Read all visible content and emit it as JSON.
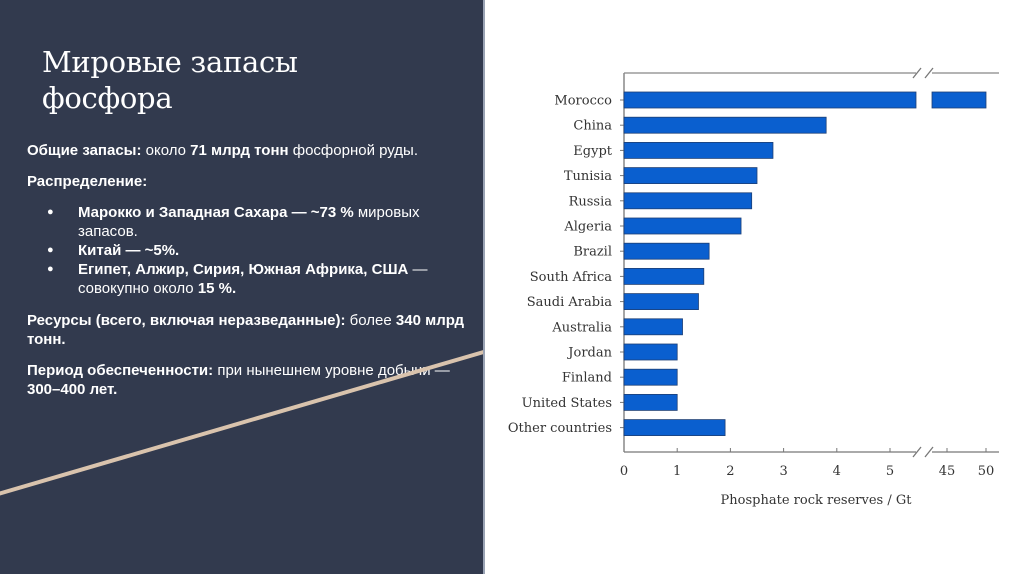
{
  "slide": {
    "title_line1": "Мировые запасы",
    "title_line2": "фосфора",
    "total": {
      "label": "Общие запасы:",
      "text1": " около ",
      "value": "71 млрд тонн",
      "text2": " фосфорной руды."
    },
    "distribution_label": "Распределение:",
    "distribution": [
      {
        "bold": "Марокко и Западная Сахара — ~73 %",
        "rest": " мировых запасов."
      },
      {
        "bold": "Китай — ~5%.",
        "rest": ""
      },
      {
        "bold": "Египет, Алжир, Сирия, Южная Африка, США",
        "rest": " — совокупно около ",
        "bold2": "15 %."
      }
    ],
    "resources": {
      "label": "Ресурсы (всего, включая неразведанные):",
      "text": " более ",
      "value": "340 млрд тонн."
    },
    "period": {
      "label": "Период обеспеченности:",
      "text": " при нынешнем уровне добычи — ",
      "value": "300–400 лет."
    },
    "bullet": "●",
    "colors": {
      "panel": "#323a4e",
      "accent_line": "#d9c3ad",
      "bar": "#0a5fcf"
    }
  },
  "chart_data": {
    "type": "bar",
    "orientation": "horizontal",
    "title": "",
    "xlabel": "Phosphate rock reserves / Gt",
    "ylabel": "",
    "categories": [
      "Morocco",
      "China",
      "Egypt",
      "Tunisia",
      "Russia",
      "Algeria",
      "Brazil",
      "South Africa",
      "Saudi Arabia",
      "Australia",
      "Jordan",
      "Finland",
      "United States",
      "Other countries"
    ],
    "values": [
      50,
      3.8,
      2.8,
      2.5,
      2.4,
      2.2,
      1.6,
      1.5,
      1.4,
      1.1,
      1.0,
      1.0,
      1.0,
      1.9
    ],
    "x_ticks": [
      "0",
      "1",
      "2",
      "3",
      "4",
      "5",
      "45",
      "50"
    ],
    "axis_break": "between 5 and 45",
    "xlim": [
      0,
      50
    ],
    "grid": false,
    "legend": null
  }
}
